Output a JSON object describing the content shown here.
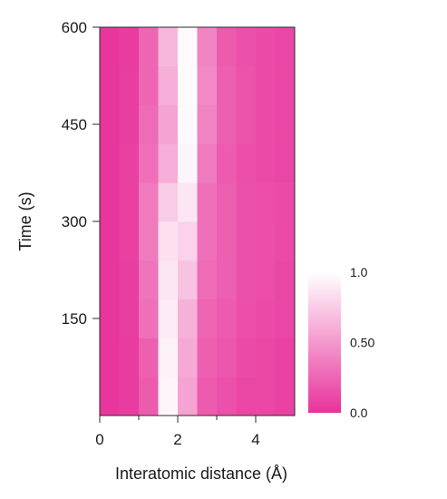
{
  "chart_data": {
    "type": "heatmap",
    "title": "",
    "xlabel": "Interatomic distance (Å)",
    "ylabel": "Time (s)",
    "xlim": [
      0,
      5
    ],
    "ylim": [
      0,
      600
    ],
    "x_ticks": [
      0,
      2,
      4
    ],
    "x_tick_labels": [
      "0",
      "2",
      "4"
    ],
    "y_ticks": [
      150,
      300,
      450,
      600
    ],
    "y_tick_labels": [
      "150",
      "300",
      "450",
      "600"
    ],
    "grid": false,
    "colormap": {
      "low": "#e8329b",
      "high": "#ffffff"
    },
    "colorbar": {
      "range": [
        0.0,
        1.0
      ],
      "ticks": [
        1.0,
        0.5,
        0.0
      ],
      "tick_labels": [
        "1.0",
        "0.50",
        "0.0"
      ]
    },
    "time_s": [
      30,
      90,
      150,
      210,
      270,
      330,
      390,
      450,
      510,
      570
    ],
    "distance_A": [
      0.25,
      0.75,
      1.25,
      1.75,
      2.25,
      2.75,
      3.25,
      3.75,
      4.25,
      4.75
    ],
    "intensity": [
      [
        0.02,
        0.05,
        0.2,
        0.95,
        0.55,
        0.2,
        0.15,
        0.1,
        0.1,
        0.08
      ],
      [
        0.02,
        0.05,
        0.22,
        0.93,
        0.58,
        0.22,
        0.18,
        0.12,
        0.1,
        0.08
      ],
      [
        0.02,
        0.06,
        0.3,
        0.9,
        0.62,
        0.25,
        0.2,
        0.14,
        0.12,
        0.1
      ],
      [
        0.02,
        0.06,
        0.32,
        0.88,
        0.7,
        0.28,
        0.22,
        0.15,
        0.13,
        0.1
      ],
      [
        0.02,
        0.07,
        0.35,
        0.85,
        0.78,
        0.3,
        0.22,
        0.15,
        0.14,
        0.12
      ],
      [
        0.02,
        0.07,
        0.35,
        0.75,
        0.88,
        0.3,
        0.22,
        0.15,
        0.13,
        0.12
      ],
      [
        0.02,
        0.07,
        0.3,
        0.6,
        0.95,
        0.35,
        0.2,
        0.14,
        0.12,
        0.1
      ],
      [
        0.02,
        0.06,
        0.28,
        0.55,
        0.97,
        0.4,
        0.22,
        0.16,
        0.12,
        0.1
      ],
      [
        0.02,
        0.06,
        0.25,
        0.6,
        0.98,
        0.42,
        0.22,
        0.16,
        0.12,
        0.1
      ],
      [
        0.02,
        0.05,
        0.25,
        0.65,
        0.98,
        0.4,
        0.2,
        0.15,
        0.12,
        0.1
      ]
    ]
  }
}
